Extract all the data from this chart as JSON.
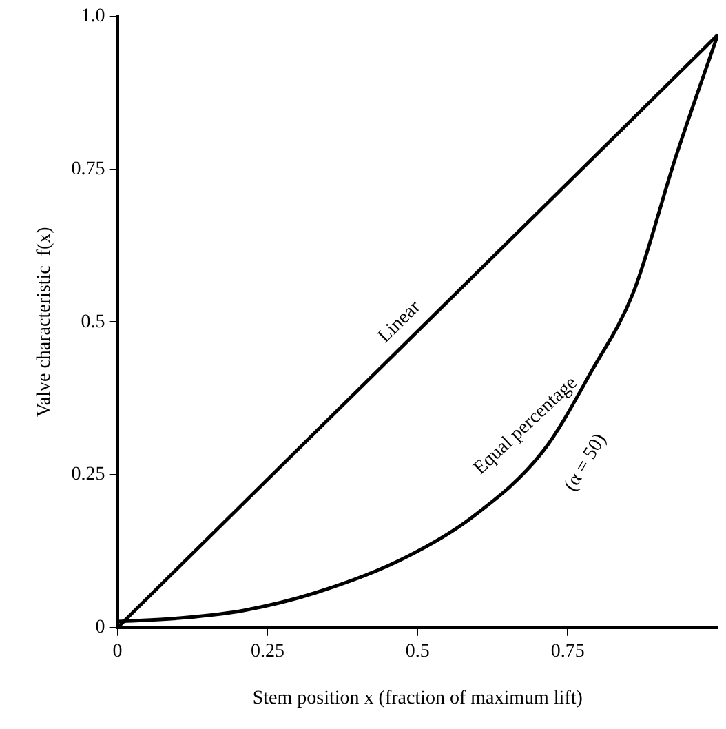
{
  "chart_data": {
    "type": "line",
    "xlabel": "Stem position x (fraction of maximum lift)",
    "ylabel": "Valve characteristic  f(x)",
    "xlim": [
      0,
      1
    ],
    "xticks": [
      0,
      0.25,
      0.5,
      0.75
    ],
    "ylim": [
      0,
      1
    ],
    "yticks": [
      0,
      0.25,
      0.5,
      0.75,
      {
        "value": 1,
        "label": "1.0"
      }
    ],
    "series": [
      {
        "color": "#000000",
        "x": [
          0,
          1
        ],
        "values": [
          0,
          0.97
        ]
      },
      {
        "color": "#000000",
        "x": [
          0,
          0.11,
          0.21,
          0.33,
          0.47,
          0.59,
          0.71,
          0.79,
          0.86,
          0.93,
          1
        ],
        "values": [
          0.01,
          0.016,
          0.028,
          0.057,
          0.11,
          0.18,
          0.29,
          0.42,
          0.55,
          0.77,
          0.97
        ]
      }
    ],
    "annotations": [
      "Linear",
      "Equal percentage",
      "(α = 50)"
    ],
    "grid": false,
    "legend": false,
    "marker": "none",
    "line_style": "solid"
  }
}
